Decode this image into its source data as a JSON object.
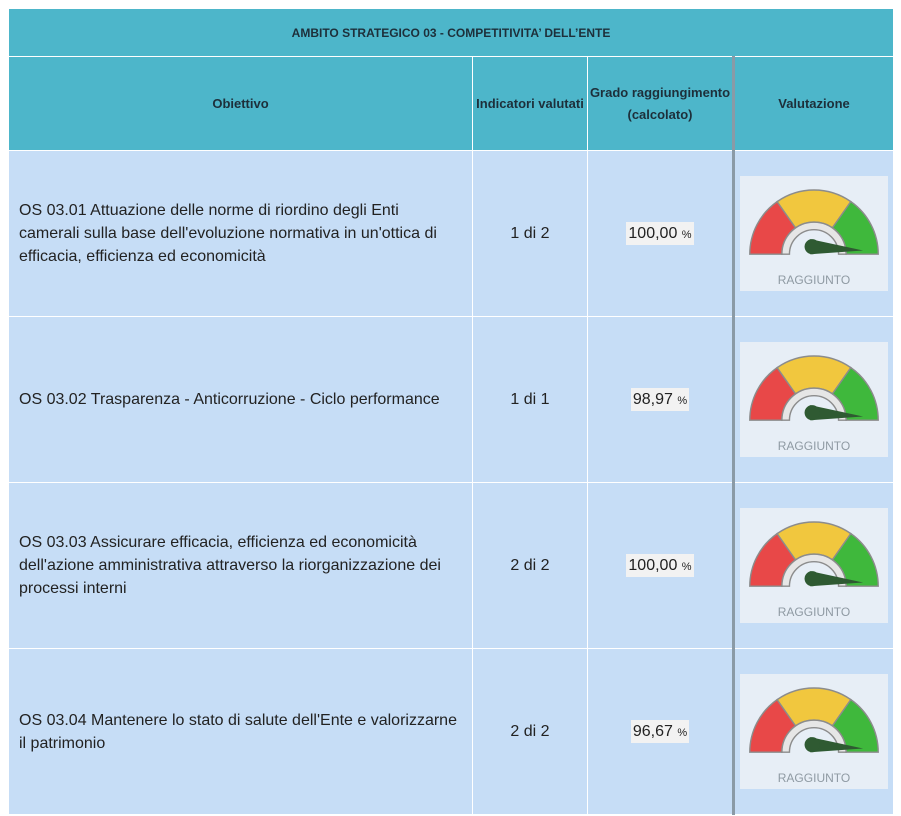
{
  "title": "AMBITO STRATEGICO 03 - COMPETITIVITA’ DELL’ENTE",
  "headers": [
    "Obiettivo",
    "Indicatori valutati",
    "Grado raggiungimento (calcolato)",
    "Valutazione"
  ],
  "rows": [
    {
      "objective": "OS 03.01 Attuazione delle norme di riordino degli Enti camerali sulla base dell'evoluzione normativa in un'ottica di efficacia, efficienza ed economicità",
      "indicators": "1 di 2",
      "grade": "100,00",
      "unit": "%",
      "status": "RAGGIUNTO"
    },
    {
      "objective": "OS 03.02 Trasparenza - Anticorruzione - Ciclo performance",
      "indicators": "1 di 1",
      "grade": "98,97",
      "unit": "%",
      "status": "RAGGIUNTO"
    },
    {
      "objective": "OS 03.03 Assicurare efficacia, efficienza ed economicità dell'azione amministrativa attraverso la riorganizzazione dei processi interni",
      "indicators": "2 di 2",
      "grade": "100,00",
      "unit": "%",
      "status": "RAGGIUNTO"
    },
    {
      "objective": "OS 03.04 Mantenere lo stato di salute dell'Ente e valorizzarne il patrimonio",
      "indicators": "2 di 2",
      "grade": "96,67",
      "unit": "%",
      "status": "RAGGIUNTO"
    }
  ]
}
